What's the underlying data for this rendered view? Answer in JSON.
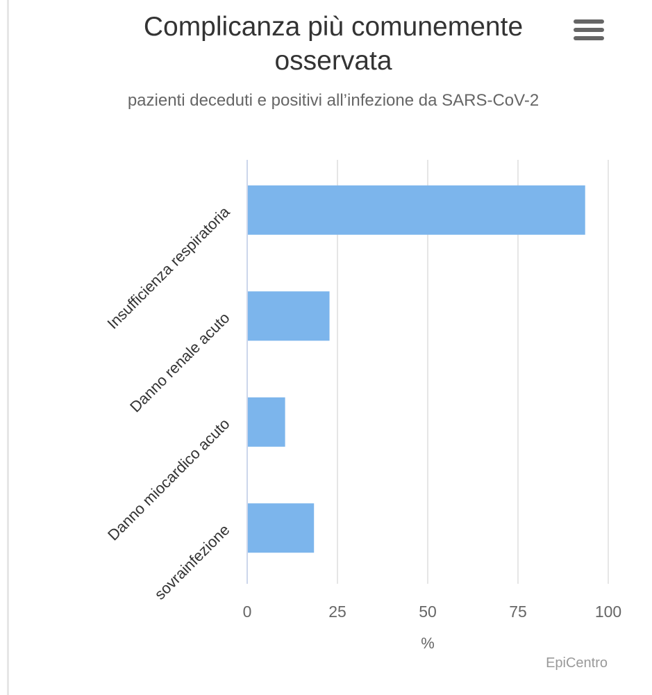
{
  "chart_data": {
    "type": "bar",
    "orientation": "horizontal",
    "title": "Complicanza più comunemente osservata",
    "subtitle": "pazienti deceduti e positivi all’infezione da SARS-CoV-2",
    "categories": [
      "Insufficienza respiratoria",
      "Danno renale acuto",
      "Danno miocardico acuto",
      "sovrainfezione"
    ],
    "values": [
      93.6,
      22.8,
      10.5,
      18.5
    ],
    "xlabel": "%",
    "ylabel": "",
    "xlim": [
      0,
      100
    ],
    "xticks": [
      "0",
      "25",
      "50",
      "75",
      "100"
    ],
    "grid": true,
    "bar_color": "#7cb5ec",
    "credit": "EpiCentro"
  },
  "menu": {
    "icon": "hamburger-menu-icon"
  }
}
